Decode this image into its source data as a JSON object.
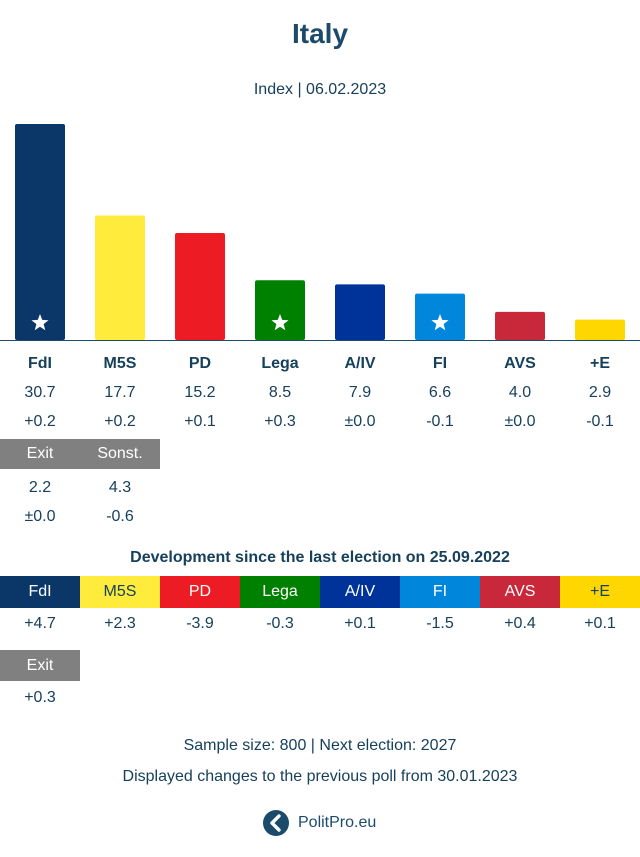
{
  "title": "Italy",
  "subtitle": "Index | 06.02.2023",
  "chart_data": {
    "type": "bar",
    "categories": [
      "FdI",
      "M5S",
      "PD",
      "Lega",
      "A/IV",
      "FI",
      "AVS",
      "+E"
    ],
    "values": [
      30.7,
      17.7,
      15.2,
      8.5,
      7.9,
      6.6,
      4.0,
      2.9
    ],
    "values_text": [
      "30.7",
      "17.7",
      "15.2",
      "8.5",
      "7.9",
      "6.6",
      "4.0",
      "2.9"
    ],
    "changes": [
      "+0.2",
      "+0.2",
      "+0.1",
      "+0.3",
      "±0.0",
      "-0.1",
      "±0.0",
      "-0.1"
    ],
    "colors": [
      "#0b3768",
      "#ffeb3b",
      "#ed1c24",
      "#008000",
      "#003399",
      "#0087dc",
      "#c8283a",
      "#ffd700"
    ],
    "label_text_colors": [
      "#ffffff",
      "#16405b",
      "#ffffff",
      "#ffffff",
      "#ffffff",
      "#ffffff",
      "#ffffff",
      "#16405b"
    ],
    "star": [
      true,
      false,
      false,
      true,
      false,
      true,
      false,
      false
    ],
    "others": [
      {
        "name": "Exit",
        "value": "2.2",
        "change": "±0.0",
        "color": "#808080"
      },
      {
        "name": "Sonst.",
        "value": "4.3",
        "change": "-0.6",
        "color": "#808080"
      }
    ],
    "ylim": [
      0,
      31
    ]
  },
  "development": {
    "title": "Development since the last election on 25.09.2022",
    "parties": [
      "FdI",
      "M5S",
      "PD",
      "Lega",
      "A/IV",
      "FI",
      "AVS",
      "+E"
    ],
    "changes": [
      "+4.7",
      "+2.3",
      "-3.9",
      "-0.3",
      "+0.1",
      "-1.5",
      "+0.4",
      "+0.1"
    ],
    "extra": {
      "name": "Exit",
      "change": "+0.3"
    }
  },
  "footer": {
    "sample": "Sample size: 800 | Next election: 2027",
    "changes_note": "Displayed changes to the previous poll from 30.01.2023",
    "brand": "PolitPro.eu"
  },
  "icons": {
    "seat_marker": "star-icon",
    "brand_logo": "politpro-logo-icon"
  }
}
